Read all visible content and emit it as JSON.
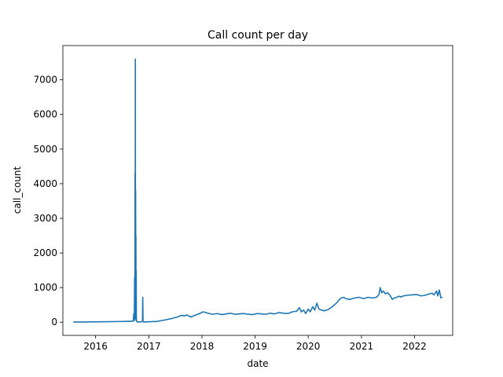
{
  "chart_data": {
    "type": "line",
    "title": "Call count per day",
    "xlabel": "date",
    "ylabel": "call_count",
    "x_ticks": [
      "2016",
      "2017",
      "2018",
      "2019",
      "2020",
      "2021",
      "2022"
    ],
    "y_ticks": [
      0,
      1000,
      2000,
      3000,
      4000,
      5000,
      6000,
      7000
    ],
    "xlim": [
      "2015-05-21",
      "2022-09-20"
    ],
    "ylim": [
      -380,
      7990
    ],
    "grid": false,
    "color": "#1f77b4",
    "series": [
      {
        "x": [
          "2015-08-01",
          "2015-10-01",
          "2015-12-01",
          "2016-02-01",
          "2016-04-01",
          "2016-06-01",
          "2016-08-01",
          "2016-09-15",
          "2016-09-20",
          "2016-09-23",
          "2016-09-25",
          "2016-09-27",
          "2016-09-28",
          "2016-09-29",
          "2016-09-30",
          "2016-10-01",
          "2016-10-02",
          "2016-10-03",
          "2016-10-04",
          "2016-10-05",
          "2016-10-06",
          "2016-10-07",
          "2016-10-08",
          "2016-10-10",
          "2016-10-12",
          "2016-10-14",
          "2016-10-16",
          "2016-10-20",
          "2016-10-30",
          "2016-11-10",
          "2016-11-18",
          "2016-11-20",
          "2016-11-22",
          "2016-11-24",
          "2016-11-28",
          "2016-12-15",
          "2017-01-15",
          "2017-03-01",
          "2017-04-15",
          "2017-06-01",
          "2017-07-15",
          "2017-08-15",
          "2017-09-01",
          "2017-09-20",
          "2017-10-15",
          "2017-11-15",
          "2017-12-15",
          "2018-01-10",
          "2018-02-10",
          "2018-03-15",
          "2018-04-15",
          "2018-05-15",
          "2018-06-15",
          "2018-07-15",
          "2018-08-15",
          "2018-09-15",
          "2018-10-15",
          "2018-11-15",
          "2018-12-15",
          "2019-01-15",
          "2019-02-15",
          "2019-03-15",
          "2019-04-15",
          "2019-05-15",
          "2019-06-15",
          "2019-07-15",
          "2019-08-15",
          "2019-09-15",
          "2019-10-15",
          "2019-11-01",
          "2019-11-15",
          "2019-12-01",
          "2019-12-15",
          "2020-01-01",
          "2020-01-15",
          "2020-02-01",
          "2020-02-15",
          "2020-03-01",
          "2020-03-15",
          "2020-04-01",
          "2020-04-20",
          "2020-05-15",
          "2020-06-15",
          "2020-07-15",
          "2020-08-01",
          "2020-08-15",
          "2020-09-01",
          "2020-09-15",
          "2020-10-15",
          "2020-11-15",
          "2020-12-15",
          "2021-01-15",
          "2021-02-15",
          "2021-03-15",
          "2021-04-15",
          "2021-05-01",
          "2021-05-10",
          "2021-05-20",
          "2021-06-01",
          "2021-06-15",
          "2021-07-01",
          "2021-07-15",
          "2021-08-01",
          "2021-08-15",
          "2021-09-01",
          "2021-09-15",
          "2021-10-01",
          "2021-10-15",
          "2021-11-15",
          "2021-12-15",
          "2022-01-15",
          "2022-02-15",
          "2022-03-15",
          "2022-04-15",
          "2022-05-01",
          "2022-05-15",
          "2022-06-01",
          "2022-06-10",
          "2022-06-20",
          "2022-07-01",
          "2022-07-10"
        ],
        "y": [
          5,
          8,
          10,
          12,
          15,
          20,
          25,
          30,
          250,
          50,
          1300,
          100,
          4300,
          200,
          7600,
          300,
          3800,
          150,
          2500,
          60,
          1500,
          200,
          40,
          15,
          10,
          12,
          8,
          10,
          10,
          15,
          20,
          720,
          15,
          10,
          8,
          10,
          15,
          25,
          60,
          100,
          150,
          200,
          180,
          210,
          150,
          200,
          250,
          300,
          260,
          230,
          250,
          220,
          240,
          260,
          230,
          240,
          250,
          230,
          220,
          250,
          240,
          230,
          260,
          240,
          280,
          260,
          250,
          300,
          320,
          420,
          300,
          350,
          250,
          380,
          300,
          450,
          350,
          550,
          380,
          350,
          330,
          360,
          450,
          560,
          650,
          700,
          720,
          680,
          660,
          700,
          720,
          680,
          720,
          700,
          720,
          800,
          1000,
          850,
          900,
          820,
          850,
          780,
          660,
          700,
          720,
          750,
          730,
          760,
          780,
          790,
          800,
          760,
          780,
          820,
          840,
          790,
          900,
          760,
          930,
          700,
          720
        ]
      }
    ]
  }
}
